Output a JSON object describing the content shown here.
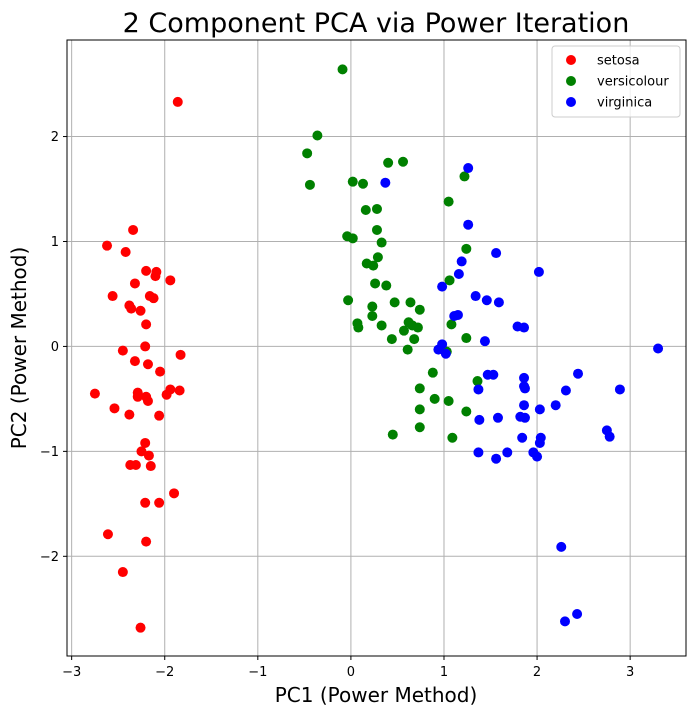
{
  "chart_data": {
    "type": "scatter",
    "title": "2 Component PCA via Power Iteration",
    "xlabel": "PC1 (Power Method)",
    "ylabel": "PC2 (Power Method)",
    "xlim": [
      -3.05,
      3.6
    ],
    "ylim": [
      -2.95,
      2.92
    ],
    "xticks": [
      -3,
      -2,
      -1,
      0,
      1,
      2,
      3
    ],
    "yticks": [
      -2,
      -1,
      0,
      1,
      2
    ],
    "xtick_labels": [
      "−3",
      "−2",
      "−1",
      "0",
      "1",
      "2",
      "3"
    ],
    "ytick_labels": [
      "−2",
      "−1",
      "0",
      "1",
      "2"
    ],
    "grid": true,
    "legend_position": "top-right",
    "series": [
      {
        "name": "setosa",
        "color": "#ff0000",
        "points": [
          [
            -1.86,
            2.33
          ],
          [
            -2.34,
            1.11
          ],
          [
            -2.62,
            0.96
          ],
          [
            -2.42,
            0.9
          ],
          [
            -2.2,
            0.72
          ],
          [
            -2.09,
            0.71
          ],
          [
            -2.1,
            0.67
          ],
          [
            -1.94,
            0.63
          ],
          [
            -2.32,
            0.6
          ],
          [
            -2.56,
            0.48
          ],
          [
            -2.16,
            0.48
          ],
          [
            -2.12,
            0.46
          ],
          [
            -2.38,
            0.39
          ],
          [
            -2.36,
            0.36
          ],
          [
            -2.26,
            0.34
          ],
          [
            -2.2,
            0.21
          ],
          [
            -2.21,
            0.0
          ],
          [
            -2.45,
            -0.04
          ],
          [
            -1.83,
            -0.08
          ],
          [
            -2.32,
            -0.14
          ],
          [
            -2.18,
            -0.17
          ],
          [
            -2.05,
            -0.24
          ],
          [
            -1.94,
            -0.41
          ],
          [
            -1.84,
            -0.42
          ],
          [
            -2.29,
            -0.44
          ],
          [
            -1.98,
            -0.46
          ],
          [
            -2.75,
            -0.45
          ],
          [
            -2.29,
            -0.48
          ],
          [
            -2.2,
            -0.48
          ],
          [
            -2.18,
            -0.52
          ],
          [
            -2.54,
            -0.59
          ],
          [
            -2.38,
            -0.65
          ],
          [
            -2.06,
            -0.66
          ],
          [
            -2.21,
            -0.92
          ],
          [
            -2.25,
            -1.0
          ],
          [
            -2.17,
            -1.04
          ],
          [
            -2.15,
            -1.14
          ],
          [
            -2.37,
            -1.13
          ],
          [
            -2.31,
            -1.13
          ],
          [
            -1.9,
            -1.4
          ],
          [
            -2.21,
            -1.49
          ],
          [
            -2.06,
            -1.49
          ],
          [
            -2.61,
            -1.79
          ],
          [
            -2.2,
            -1.86
          ],
          [
            -2.45,
            -2.15
          ],
          [
            -2.26,
            -2.68
          ]
        ]
      },
      {
        "name": "versicolour",
        "color": "#008000",
        "points": [
          [
            -0.09,
            2.64
          ],
          [
            -0.36,
            2.01
          ],
          [
            -0.47,
            1.84
          ],
          [
            -0.44,
            1.54
          ],
          [
            0.4,
            1.75
          ],
          [
            0.56,
            1.76
          ],
          [
            0.02,
            1.57
          ],
          [
            0.13,
            1.55
          ],
          [
            1.22,
            1.62
          ],
          [
            1.05,
            1.38
          ],
          [
            0.16,
            1.3
          ],
          [
            0.28,
            1.31
          ],
          [
            -0.04,
            1.05
          ],
          [
            0.02,
            1.03
          ],
          [
            0.28,
            1.11
          ],
          [
            0.33,
            0.99
          ],
          [
            1.24,
            0.93
          ],
          [
            0.29,
            0.85
          ],
          [
            0.17,
            0.79
          ],
          [
            0.24,
            0.77
          ],
          [
            1.06,
            0.63
          ],
          [
            0.26,
            0.6
          ],
          [
            0.38,
            0.58
          ],
          [
            -0.03,
            0.44
          ],
          [
            0.47,
            0.42
          ],
          [
            0.64,
            0.42
          ],
          [
            0.23,
            0.38
          ],
          [
            0.74,
            0.35
          ],
          [
            0.23,
            0.29
          ],
          [
            0.62,
            0.23
          ],
          [
            0.07,
            0.22
          ],
          [
            0.66,
            0.2
          ],
          [
            0.08,
            0.18
          ],
          [
            0.33,
            0.2
          ],
          [
            1.08,
            0.21
          ],
          [
            0.57,
            0.15
          ],
          [
            0.72,
            0.18
          ],
          [
            0.44,
            0.07
          ],
          [
            0.68,
            0.07
          ],
          [
            1.24,
            0.08
          ],
          [
            0.61,
            -0.03
          ],
          [
            1.03,
            -0.05
          ],
          [
            0.88,
            -0.25
          ],
          [
            1.36,
            -0.33
          ],
          [
            0.74,
            -0.4
          ],
          [
            0.9,
            -0.5
          ],
          [
            1.05,
            -0.52
          ],
          [
            0.74,
            -0.6
          ],
          [
            1.24,
            -0.62
          ],
          [
            0.74,
            -0.77
          ],
          [
            0.45,
            -0.84
          ],
          [
            1.09,
            -0.87
          ]
        ]
      },
      {
        "name": "virginica",
        "color": "#0000ff",
        "points": [
          [
            1.26,
            1.7
          ],
          [
            0.37,
            1.56
          ],
          [
            1.26,
            1.16
          ],
          [
            1.56,
            0.89
          ],
          [
            1.19,
            0.81
          ],
          [
            2.02,
            0.71
          ],
          [
            1.16,
            0.69
          ],
          [
            1.34,
            0.48
          ],
          [
            0.98,
            0.57
          ],
          [
            1.11,
            0.29
          ],
          [
            1.46,
            0.44
          ],
          [
            1.59,
            0.42
          ],
          [
            1.15,
            0.3
          ],
          [
            1.79,
            0.19
          ],
          [
            1.86,
            0.18
          ],
          [
            1.44,
            0.05
          ],
          [
            0.94,
            -0.03
          ],
          [
            0.98,
            0.02
          ],
          [
            1.02,
            -0.07
          ],
          [
            1.47,
            -0.27
          ],
          [
            1.53,
            -0.27
          ],
          [
            2.44,
            -0.26
          ],
          [
            3.3,
            -0.02
          ],
          [
            1.86,
            -0.3
          ],
          [
            1.86,
            -0.38
          ],
          [
            1.87,
            -0.4
          ],
          [
            2.31,
            -0.42
          ],
          [
            2.89,
            -0.41
          ],
          [
            1.37,
            -0.41
          ],
          [
            1.86,
            -0.56
          ],
          [
            2.2,
            -0.56
          ],
          [
            2.03,
            -0.6
          ],
          [
            1.38,
            -0.7
          ],
          [
            1.58,
            -0.68
          ],
          [
            1.82,
            -0.67
          ],
          [
            1.87,
            -0.68
          ],
          [
            2.75,
            -0.8
          ],
          [
            2.78,
            -0.86
          ],
          [
            1.84,
            -0.87
          ],
          [
            2.04,
            -0.87
          ],
          [
            2.03,
            -0.92
          ],
          [
            1.37,
            -1.01
          ],
          [
            1.68,
            -1.01
          ],
          [
            1.96,
            -1.01
          ],
          [
            2.0,
            -1.05
          ],
          [
            1.56,
            -1.07
          ],
          [
            2.26,
            -1.91
          ],
          [
            2.43,
            -2.55
          ],
          [
            2.3,
            -2.62
          ]
        ]
      }
    ]
  }
}
